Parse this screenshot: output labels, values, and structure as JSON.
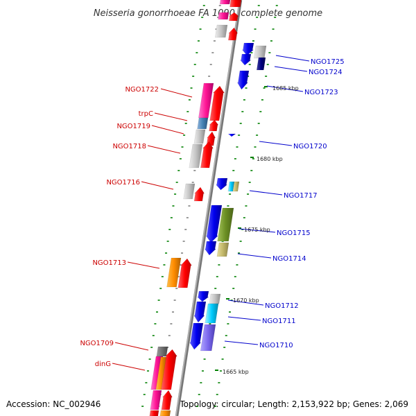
{
  "title": "Neisseria gonorrhoeae FA 1090, complete genome",
  "footer": {
    "accession": "Accession: NC_002946",
    "summary": "Topology: circular; Length: 2,153,922 bp; Genes: 2,069"
  },
  "kbp_marks": [
    "1685 kbp",
    "1680 kbp",
    "1675 kbp",
    "1670 kbp",
    "1665 kbp"
  ],
  "left_labels": [
    "NGO1722",
    "trpC",
    "NGO1719",
    "NGO1718",
    "NGO1716",
    "NGO1713",
    "NGO1709",
    "dinG"
  ],
  "right_labels": [
    "NGO1725",
    "NGO1724",
    "NGO1723",
    "NGO1720",
    "NGO1717",
    "NGO1715",
    "NGO1714",
    "NGO1712",
    "NGO1711",
    "NGO1710"
  ],
  "colors": {
    "reverse_label": "#cc0000",
    "forward_label": "#0000cc",
    "backbone": "#888888",
    "tick": "#008000"
  }
}
